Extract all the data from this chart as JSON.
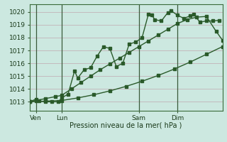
{
  "background_color": "#cce8e0",
  "line_color": "#2a5a2a",
  "grid_color": "#c0a8b0",
  "ylabel_text": "Pression niveau de la mer( hPa )",
  "ylim": [
    1012.3,
    1020.6
  ],
  "yticks": [
    1013,
    1014,
    1015,
    1016,
    1017,
    1018,
    1019,
    1020
  ],
  "xlim": [
    0,
    60
  ],
  "day_labels": [
    "Ven",
    "Lun",
    "Sam",
    "Dim"
  ],
  "day_positions": [
    2,
    10,
    34,
    46
  ],
  "day_vlines": [
    2,
    10,
    34,
    46
  ],
  "line1_x": [
    0,
    2,
    3,
    5,
    7,
    9,
    10,
    12,
    14,
    15,
    17,
    19,
    21,
    23,
    25,
    27,
    29,
    31,
    33,
    35,
    37,
    38,
    39,
    41,
    43,
    44,
    46,
    48,
    50,
    51,
    53,
    55,
    57,
    59
  ],
  "line1_y": [
    1013.0,
    1013.2,
    1013.05,
    1013.0,
    1013.0,
    1013.0,
    1013.3,
    1013.6,
    1015.4,
    1014.85,
    1015.5,
    1015.65,
    1016.55,
    1017.3,
    1017.15,
    1015.75,
    1016.0,
    1017.5,
    1017.65,
    1018.0,
    1019.85,
    1019.75,
    1019.4,
    1019.3,
    1019.95,
    1020.1,
    1019.75,
    1019.5,
    1019.7,
    1019.85,
    1019.2,
    1019.3,
    1019.3,
    1019.35
  ],
  "line2_x": [
    0,
    2,
    5,
    8,
    10,
    13,
    16,
    19,
    22,
    25,
    28,
    31,
    34,
    37,
    40,
    43,
    46,
    49,
    52,
    55,
    58,
    60
  ],
  "line2_y": [
    1013.0,
    1013.1,
    1013.25,
    1013.4,
    1013.5,
    1014.0,
    1014.5,
    1015.0,
    1015.5,
    1015.95,
    1016.4,
    1016.85,
    1017.3,
    1017.75,
    1018.2,
    1018.65,
    1019.1,
    1019.4,
    1019.6,
    1019.65,
    1018.5,
    1017.8
  ],
  "line3_x": [
    0,
    5,
    10,
    15,
    20,
    25,
    30,
    35,
    40,
    45,
    50,
    55,
    60
  ],
  "line3_y": [
    1013.0,
    1013.05,
    1013.1,
    1013.3,
    1013.55,
    1013.85,
    1014.2,
    1014.6,
    1015.05,
    1015.55,
    1016.1,
    1016.7,
    1017.3
  ],
  "marker_size": 2.5,
  "linewidth": 1.0,
  "figsize": [
    3.2,
    2.0
  ],
  "dpi": 100
}
